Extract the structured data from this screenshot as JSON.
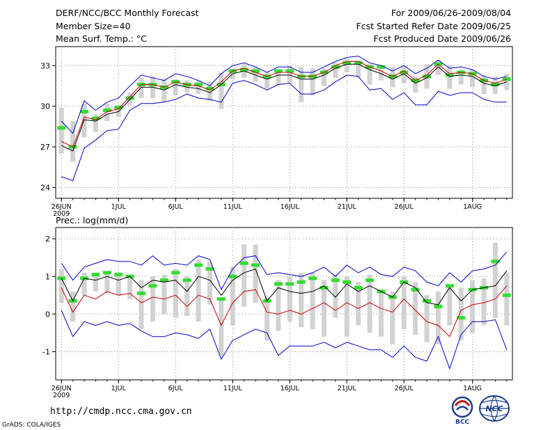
{
  "header": {
    "title": "DERF/NCC/BCC Monthly Forecast",
    "member_size": "Member Size=40",
    "period": "For 2009/06/26-2009/08/04",
    "fcst_started": "Fcst Started Refer Date 2009/06/25",
    "fcst_produced": "Fcst Produced Date 2009/06/26"
  },
  "footer": {
    "url": "http://cmdp.ncc.cma.gov.cn",
    "grads": "GrADS: COLA/IGES",
    "logo_bcc": "BCC",
    "logo_ncc": "NCC"
  },
  "colors": {
    "spread": "#d2d2d2",
    "observed": "#33dd33",
    "bound": "#0000cc",
    "control": "#cc0000",
    "mean": "#000000",
    "grid": "#888888"
  },
  "chart_data": [
    {
      "type": "line",
      "name": "temperature",
      "ylabel": "Mean Surf. Temp.: °C",
      "ylim": [
        23.2,
        34.4
      ],
      "yticks": [
        24,
        27,
        30,
        33
      ],
      "ytick_labels": [
        "24",
        "27",
        "30",
        "33"
      ],
      "grid": true,
      "x_tick_days": [
        0,
        5,
        10,
        15,
        20,
        25,
        30,
        36
      ],
      "x_tick_labels": [
        "26JUN",
        "1JUL",
        "6JUL",
        "11JUL",
        "16JUL",
        "21JUL",
        "26JUL",
        "1AUG"
      ],
      "x_tick_year": "2009",
      "days": 40,
      "series": [
        {
          "name": "Ensemble mean",
          "values": [
            27.1,
            26.7,
            29.0,
            28.9,
            29.4,
            29.6,
            30.5,
            31.4,
            31.4,
            31.2,
            31.6,
            31.4,
            31.3,
            31.0,
            31.6,
            32.4,
            32.6,
            32.3,
            32.0,
            32.3,
            32.3,
            32.0,
            32.0,
            32.3,
            32.8,
            33.1,
            33.1,
            32.7,
            32.4,
            32.0,
            32.4,
            31.7,
            32.1,
            32.9,
            32.2,
            32.3,
            32.2,
            31.7,
            31.5,
            31.8
          ]
        },
        {
          "name": "Max member",
          "values": [
            28.9,
            28.0,
            30.4,
            29.7,
            30.3,
            30.6,
            31.5,
            32.3,
            32.1,
            31.9,
            32.4,
            32.2,
            31.9,
            31.5,
            32.4,
            33.0,
            33.2,
            32.9,
            32.5,
            32.9,
            32.9,
            32.5,
            32.5,
            32.9,
            33.3,
            33.6,
            33.7,
            33.2,
            33.0,
            32.6,
            33.0,
            32.4,
            32.8,
            33.4,
            32.8,
            32.9,
            32.7,
            32.2,
            32.0,
            32.2
          ]
        },
        {
          "name": "Min member",
          "values": [
            24.8,
            24.5,
            26.9,
            27.5,
            28.2,
            28.3,
            29.7,
            30.2,
            30.2,
            30.3,
            30.5,
            30.9,
            30.6,
            30.5,
            30.3,
            31.7,
            31.9,
            31.6,
            31.2,
            31.6,
            31.7,
            30.9,
            30.9,
            31.2,
            31.8,
            32.3,
            32.2,
            31.2,
            31.3,
            30.5,
            31.0,
            30.1,
            30.1,
            31.1,
            30.8,
            31.0,
            31.0,
            30.5,
            30.3,
            30.3
          ]
        },
        {
          "name": "Control",
          "values": [
            27.4,
            27.0,
            29.2,
            29.0,
            29.6,
            29.8,
            30.7,
            31.6,
            31.6,
            31.4,
            31.8,
            31.6,
            31.5,
            31.2,
            31.8,
            32.6,
            32.8,
            32.5,
            32.2,
            32.5,
            32.5,
            32.2,
            32.2,
            32.5,
            33.0,
            33.3,
            33.3,
            32.9,
            32.6,
            32.2,
            32.6,
            31.9,
            32.3,
            33.1,
            32.4,
            32.5,
            32.4,
            31.9,
            31.7,
            32.0
          ]
        },
        {
          "name": "Observed",
          "values": [
            28.4,
            27.0,
            29.6,
            29.1,
            29.7,
            29.9,
            30.6,
            31.6,
            31.6,
            31.4,
            31.8,
            31.6,
            31.6,
            31.3,
            31.6,
            32.6,
            32.7,
            32.6,
            32.2,
            32.6,
            32.6,
            32.2,
            32.2,
            32.5,
            32.9,
            33.2,
            33.2,
            32.9,
            32.9,
            32.2,
            32.5,
            31.9,
            32.2,
            33.1,
            32.3,
            32.5,
            32.4,
            31.9,
            31.6,
            32.0
          ]
        },
        {
          "name": "Spread upper",
          "values": [
            29.9,
            28.9,
            30.2,
            29.4,
            30.2,
            30.1,
            31.0,
            32.1,
            32.2,
            32.0,
            32.0,
            31.9,
            31.9,
            31.8,
            32.5,
            32.8,
            33.1,
            32.9,
            32.5,
            32.6,
            33.0,
            32.9,
            32.8,
            32.8,
            33.2,
            33.5,
            33.4,
            33.1,
            33.0,
            32.9,
            32.9,
            32.2,
            33.1,
            33.4,
            33.0,
            32.7,
            32.7,
            32.3,
            32.2,
            32.4
          ]
        },
        {
          "name": "Spread lower",
          "values": [
            26.5,
            25.9,
            27.7,
            28.1,
            28.9,
            29.2,
            30.1,
            30.6,
            30.6,
            30.3,
            30.8,
            31.0,
            30.9,
            30.4,
            29.8,
            32.0,
            32.1,
            31.8,
            31.3,
            31.6,
            31.7,
            30.3,
            30.8,
            31.5,
            32.1,
            32.5,
            32.1,
            31.6,
            31.9,
            31.4,
            31.7,
            31.0,
            31.3,
            32.3,
            31.3,
            31.6,
            31.4,
            30.9,
            30.9,
            31.2
          ]
        }
      ]
    },
    {
      "type": "line",
      "name": "precipitation",
      "ylabel": "Prec.: log(mm/d)",
      "ylim": [
        -1.75,
        2.3
      ],
      "yticks": [
        -1,
        0,
        1,
        2
      ],
      "ytick_labels": [
        "-1",
        "0",
        "1",
        "2"
      ],
      "grid": true,
      "x_tick_days": [
        0,
        5,
        10,
        15,
        20,
        25,
        30,
        36
      ],
      "x_tick_labels": [
        "26JUN",
        "1JUL",
        "6JUL",
        "11JUL",
        "16JUL",
        "21JUL",
        "26JUL",
        "1AUG"
      ],
      "x_tick_year": "2009",
      "days": 40,
      "series": [
        {
          "name": "Ensemble mean",
          "values": [
            0.95,
            0.35,
            0.95,
            0.9,
            1.0,
            0.9,
            1.0,
            0.7,
            0.9,
            0.85,
            0.9,
            0.6,
            1.0,
            0.9,
            0.5,
            0.9,
            1.1,
            1.2,
            0.35,
            0.7,
            0.6,
            0.55,
            0.6,
            0.75,
            0.45,
            0.8,
            0.6,
            0.75,
            0.6,
            0.45,
            0.85,
            0.7,
            0.3,
            0.25,
            0.7,
            0.35,
            0.65,
            0.7,
            0.75,
            1.15
          ]
        },
        {
          "name": "Max member",
          "values": [
            1.35,
            0.9,
            1.25,
            1.35,
            1.45,
            1.4,
            1.4,
            1.3,
            1.55,
            1.3,
            1.35,
            1.3,
            1.55,
            1.45,
            0.65,
            1.2,
            1.5,
            1.55,
            1.05,
            1.1,
            1.05,
            1.0,
            1.1,
            1.25,
            1.0,
            1.3,
            1.1,
            1.25,
            1.05,
            1.0,
            1.25,
            1.15,
            0.85,
            0.75,
            1.1,
            0.85,
            1.15,
            1.2,
            1.3,
            1.65
          ]
        },
        {
          "name": "Min member",
          "values": [
            0.1,
            -0.6,
            -0.2,
            -0.3,
            -0.2,
            -0.3,
            -0.25,
            -0.45,
            -0.6,
            -0.6,
            -0.5,
            -0.55,
            -0.65,
            -0.4,
            -1.2,
            -0.7,
            -0.55,
            -0.4,
            -0.5,
            -1.1,
            -0.85,
            -0.85,
            -0.85,
            -0.75,
            -0.9,
            -0.75,
            -0.85,
            -0.95,
            -0.95,
            -1.15,
            -0.85,
            -1.15,
            -1.25,
            -0.6,
            -1.45,
            -0.55,
            -0.2,
            -0.2,
            -0.15,
            -0.95
          ]
        },
        {
          "name": "Control",
          "values": [
            0.7,
            0.05,
            0.5,
            0.4,
            0.6,
            0.5,
            0.55,
            0.3,
            0.45,
            0.4,
            0.5,
            0.2,
            0.5,
            0.4,
            -0.3,
            0.3,
            0.6,
            0.65,
            0.05,
            0.0,
            0.1,
            0.0,
            0.15,
            0.3,
            0.1,
            0.3,
            0.15,
            0.3,
            0.15,
            0.05,
            0.4,
            0.1,
            -0.2,
            -0.3,
            -0.6,
            0.1,
            0.25,
            0.3,
            0.4,
            0.75
          ]
        },
        {
          "name": "Observed",
          "values": [
            0.95,
            0.35,
            0.95,
            1.05,
            1.1,
            1.05,
            1.0,
            0.55,
            0.75,
            0.9,
            1.1,
            0.9,
            1.3,
            1.2,
            0.4,
            1.0,
            1.35,
            1.3,
            0.35,
            0.8,
            0.8,
            0.85,
            0.95,
            0.7,
            0.9,
            0.85,
            0.7,
            0.9,
            0.6,
            0.45,
            0.85,
            0.65,
            0.35,
            0.2,
            0.75,
            -0.1,
            0.65,
            0.7,
            1.4,
            0.5
          ]
        },
        {
          "name": "Spread upper",
          "values": [
            1.2,
            0.6,
            1.1,
            1.05,
            1.1,
            1.05,
            1.05,
            0.9,
            1.0,
            1.05,
            1.2,
            1.0,
            1.45,
            1.4,
            0.4,
            1.25,
            1.85,
            1.85,
            0.45,
            0.9,
            1.0,
            1.1,
            1.1,
            0.9,
            1.05,
            1.0,
            0.85,
            1.05,
            0.65,
            0.6,
            1.0,
            0.85,
            0.5,
            0.6,
            0.75,
            0.7,
            0.9,
            0.95,
            1.9,
            1.1
          ]
        },
        {
          "name": "Spread lower",
          "values": [
            0.3,
            -0.2,
            0.5,
            0.6,
            0.55,
            0.5,
            0.4,
            -0.4,
            -0.2,
            0.0,
            -0.1,
            -0.05,
            -0.2,
            0.25,
            -1.1,
            -0.3,
            0.2,
            0.3,
            -0.7,
            -0.45,
            -0.2,
            -0.35,
            -0.4,
            -0.6,
            -0.1,
            -0.6,
            -0.3,
            -0.5,
            -0.6,
            -0.8,
            -0.4,
            -0.55,
            -0.75,
            -0.8,
            -0.3,
            -0.7,
            -0.5,
            -0.3,
            -0.1,
            -0.3
          ]
        }
      ]
    }
  ]
}
